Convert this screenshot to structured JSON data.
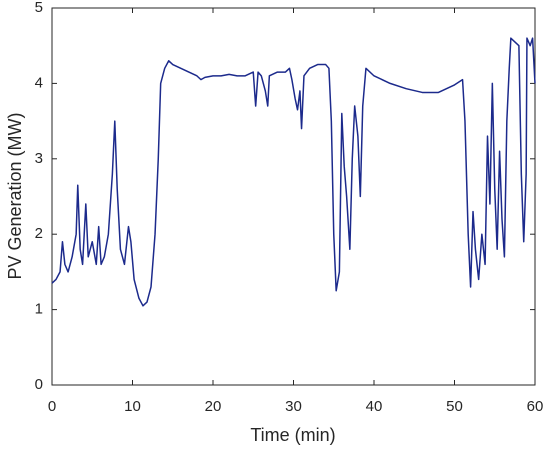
{
  "chart_data": {
    "type": "line",
    "xlabel": "Time (min)",
    "ylabel": "PV Generation (MW)",
    "x": [
      0,
      0.5,
      1,
      1.3,
      1.6,
      2,
      2.5,
      3,
      3.2,
      3.5,
      3.8,
      4.2,
      4.5,
      5,
      5.5,
      5.8,
      6.1,
      6.5,
      7,
      7.5,
      7.8,
      8.1,
      8.5,
      9,
      9.5,
      9.8,
      10.2,
      10.8,
      11.3,
      11.8,
      12.3,
      12.8,
      13.2,
      13.5,
      14,
      14.5,
      15,
      16,
      17,
      18,
      18.5,
      19,
      20,
      21,
      22,
      23,
      24,
      25,
      25.3,
      25.6,
      26,
      26.5,
      26.8,
      27,
      28,
      29,
      29.5,
      29.8,
      30.2,
      30.5,
      30.8,
      31,
      31.3,
      32,
      33,
      34,
      34.4,
      34.7,
      35,
      35.3,
      35.7,
      36,
      36.3,
      36.6,
      37,
      37.3,
      37.6,
      38,
      38.3,
      38.6,
      39,
      40,
      42,
      44,
      46,
      48,
      50,
      51,
      51.3,
      51.7,
      52,
      52.3,
      52.6,
      53,
      53.4,
      53.8,
      54.1,
      54.4,
      54.7,
      55,
      55.3,
      55.6,
      55.9,
      56.2,
      56.5,
      56.8,
      57,
      57.5,
      58,
      58.3,
      58.6,
      58.9,
      59,
      59.4,
      59.7,
      60
    ],
    "series": [
      {
        "name": "PV",
        "color": "#1c2a8c",
        "values": [
          1.35,
          1.4,
          1.5,
          1.9,
          1.6,
          1.5,
          1.7,
          2.0,
          2.65,
          1.8,
          1.6,
          2.4,
          1.7,
          1.9,
          1.6,
          2.1,
          1.6,
          1.7,
          2.0,
          2.8,
          3.5,
          2.6,
          1.8,
          1.6,
          2.1,
          1.9,
          1.4,
          1.15,
          1.05,
          1.1,
          1.3,
          2.0,
          3.0,
          4.0,
          4.2,
          4.3,
          4.25,
          4.2,
          4.15,
          4.1,
          4.05,
          4.08,
          4.1,
          4.1,
          4.12,
          4.1,
          4.1,
          4.15,
          3.7,
          4.15,
          4.1,
          3.9,
          3.7,
          4.1,
          4.15,
          4.15,
          4.2,
          4.05,
          3.8,
          3.65,
          3.9,
          3.4,
          4.1,
          4.2,
          4.25,
          4.25,
          4.2,
          3.5,
          2.0,
          1.25,
          1.5,
          3.6,
          2.9,
          2.5,
          1.8,
          3.0,
          3.7,
          3.3,
          2.5,
          3.7,
          4.2,
          4.1,
          4.0,
          3.93,
          3.88,
          3.88,
          3.98,
          4.05,
          3.5,
          2.0,
          1.3,
          2.3,
          1.8,
          1.4,
          2.0,
          1.6,
          3.3,
          2.4,
          4.0,
          2.6,
          1.8,
          3.1,
          2.2,
          1.7,
          3.5,
          4.2,
          4.6,
          4.55,
          4.5,
          2.8,
          1.9,
          2.8,
          4.6,
          4.5,
          4.6,
          4.0
        ]
      }
    ],
    "xlim": [
      0,
      60
    ],
    "xticks": [
      0,
      10,
      20,
      30,
      40,
      50,
      60
    ],
    "ylim": [
      0,
      5
    ],
    "yticks": [
      0,
      1,
      2,
      3,
      4,
      5
    ]
  }
}
